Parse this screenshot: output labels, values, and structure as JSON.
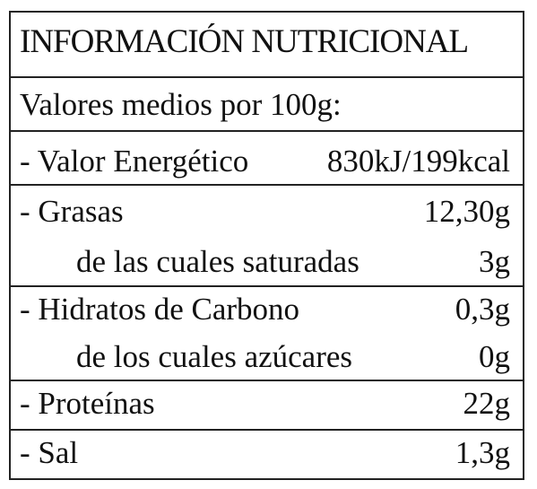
{
  "title": "INFORMACIÓN NUTRICIONAL",
  "subtitle": "Valores medios por 100g:",
  "groups": [
    {
      "lines": [
        {
          "label": "- Valor Energético",
          "value": "830kJ/199kcal"
        }
      ]
    },
    {
      "lines": [
        {
          "label": "- Grasas",
          "value": "12,30g"
        },
        {
          "label": "de las cuales saturadas",
          "value": "3g"
        }
      ]
    },
    {
      "lines": [
        {
          "label": "- Hidratos de Carbono",
          "value": "0,3g"
        },
        {
          "label": "de los cuales azúcares",
          "value": "0g"
        }
      ]
    },
    {
      "lines": [
        {
          "label": "- Proteínas",
          "value": "22g"
        }
      ]
    },
    {
      "lines": [
        {
          "label": "- Sal",
          "value": "1,3g"
        }
      ]
    }
  ]
}
